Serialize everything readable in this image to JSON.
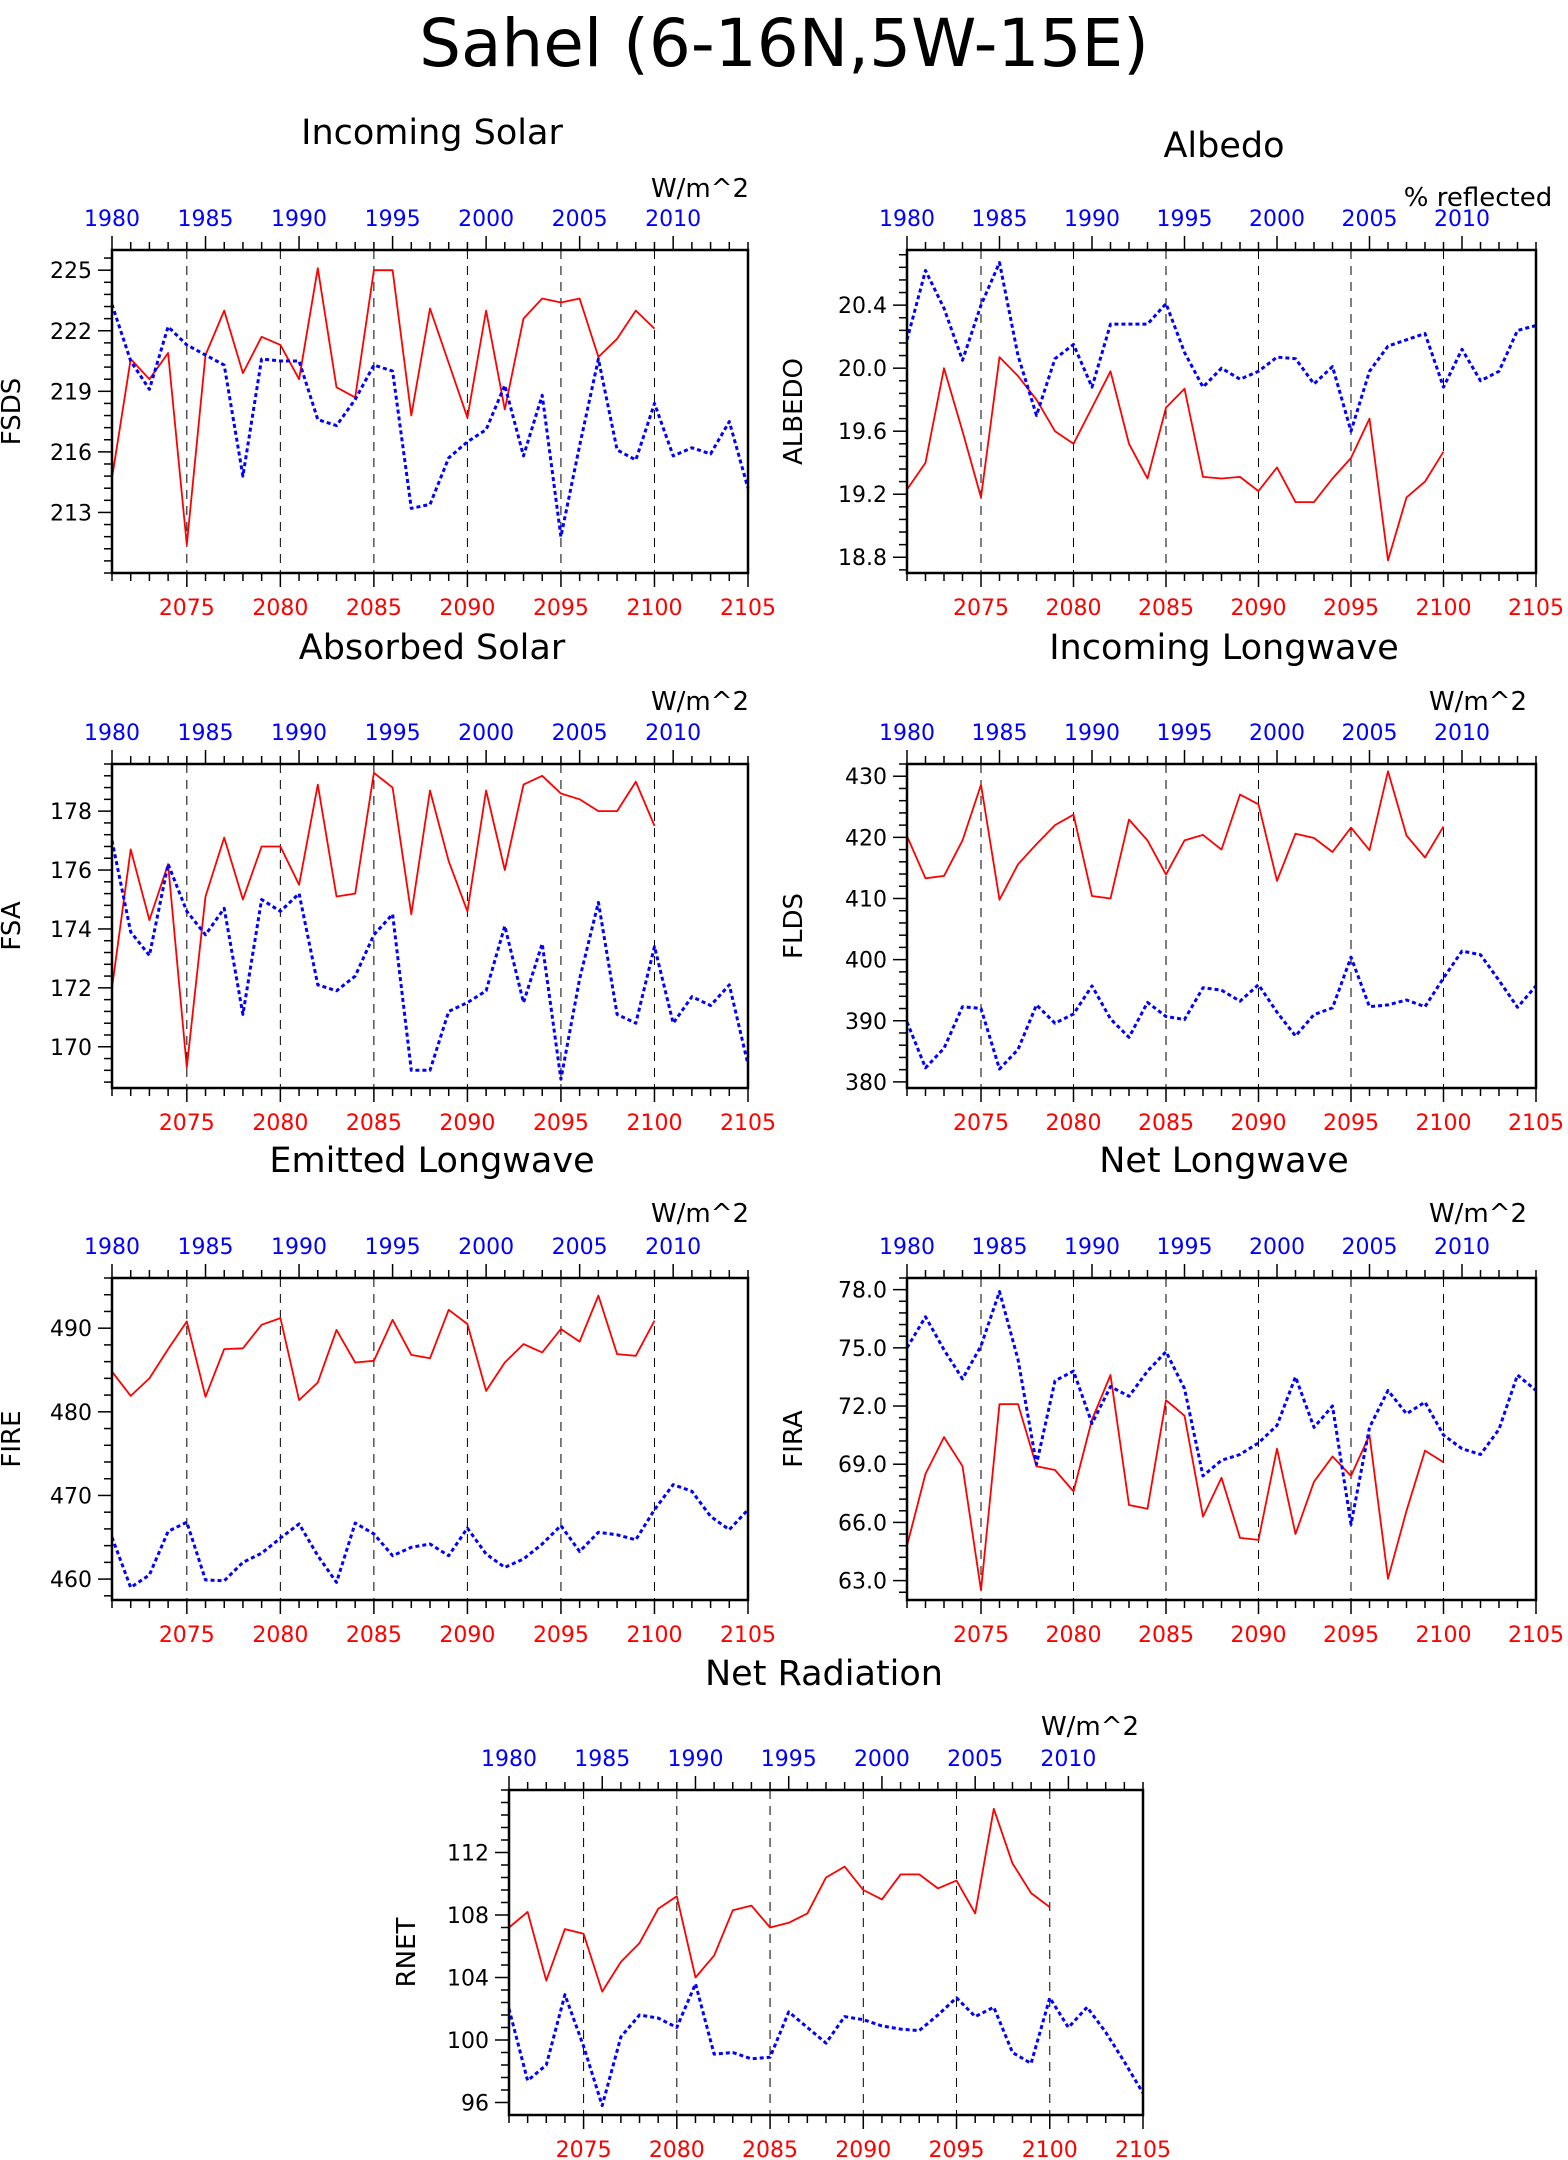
{
  "title": "Sahel (6-16N,5W-15E)",
  "colors": {
    "future": "#ff0000",
    "historical": "#0000ff",
    "axis": "#000000"
  },
  "chart_data": [
    {
      "type": "line",
      "title": "Incoming Solar",
      "units": "W/m^2",
      "ylabel": "FSDS",
      "ylim": [
        210,
        226
      ],
      "yticks": [
        213,
        216,
        219,
        222,
        225
      ],
      "ytick_labels": [
        "213",
        "216",
        "219",
        "222",
        "225"
      ],
      "x_bottom": {
        "lim": [
          2071,
          2105
        ],
        "ticks": [
          2075,
          2080,
          2085,
          2090,
          2095,
          2100,
          2105
        ],
        "labels": [
          "2075",
          "2080",
          "2085",
          "2090",
          "2095",
          "2100",
          "2105"
        ]
      },
      "x_top": {
        "lim": [
          1980,
          2014
        ],
        "ticks": [
          1980,
          1985,
          1990,
          1995,
          2000,
          2005,
          2010
        ],
        "labels": [
          "1980",
          "1985",
          "1990",
          "1995",
          "2000",
          "2005",
          "2010"
        ]
      },
      "series": [
        {
          "role": "future",
          "x_start": 2071,
          "values": [
            214.7,
            220.6,
            219.6,
            220.9,
            211.4,
            220.8,
            223.0,
            219.9,
            221.7,
            221.3,
            219.6,
            225.1,
            219.2,
            218.7,
            225.0,
            225.0,
            217.8,
            223.1,
            220.4,
            217.7,
            223.0,
            218.1,
            222.6,
            223.6,
            223.4,
            223.6,
            220.7,
            221.6,
            223.0,
            222.1
          ]
        },
        {
          "role": "historical",
          "x_start": 1980,
          "values": [
            223.3,
            220.5,
            219.1,
            222.2,
            221.3,
            220.8,
            220.3,
            214.8,
            220.6,
            220.5,
            220.5,
            217.6,
            217.3,
            218.6,
            220.3,
            220.0,
            213.2,
            213.4,
            215.7,
            216.5,
            217.1,
            219.3,
            215.8,
            218.8,
            211.8,
            216.3,
            220.6,
            216.1,
            215.6,
            218.4,
            215.8,
            216.2,
            215.9,
            217.5,
            214.2
          ]
        }
      ]
    },
    {
      "type": "line",
      "title": "Albedo",
      "units": "% reflected",
      "ylabel": "ALBEDO",
      "ylim": [
        18.7,
        20.75
      ],
      "yticks": [
        18.8,
        19.2,
        19.6,
        20.0,
        20.4
      ],
      "ytick_labels": [
        "18.8",
        "19.2",
        "19.6",
        "20.0",
        "20.4"
      ],
      "x_bottom": {
        "lim": [
          2071,
          2105
        ],
        "ticks": [
          2075,
          2080,
          2085,
          2090,
          2095,
          2100,
          2105
        ],
        "labels": [
          "2075",
          "2080",
          "2085",
          "2090",
          "2095",
          "2100",
          "2105"
        ]
      },
      "x_top": {
        "lim": [
          1980,
          2014
        ],
        "ticks": [
          1980,
          1985,
          1990,
          1995,
          2000,
          2005,
          2010
        ],
        "labels": [
          "1980",
          "1985",
          "1990",
          "1995",
          "2000",
          "2005",
          "2010"
        ]
      },
      "series": [
        {
          "role": "future",
          "x_start": 2071,
          "values": [
            19.23,
            19.4,
            20.0,
            19.6,
            19.18,
            20.07,
            19.95,
            19.8,
            19.6,
            19.52,
            19.75,
            19.98,
            19.52,
            19.3,
            19.75,
            19.87,
            19.31,
            19.3,
            19.31,
            19.22,
            19.37,
            19.15,
            19.15,
            19.3,
            19.43,
            19.68,
            18.78,
            19.18,
            19.28,
            19.47
          ]
        },
        {
          "role": "historical",
          "x_start": 1980,
          "values": [
            20.18,
            20.62,
            20.38,
            20.05,
            20.4,
            20.67,
            20.08,
            19.7,
            20.06,
            20.15,
            19.88,
            20.28,
            20.28,
            20.28,
            20.41,
            20.1,
            19.88,
            20.0,
            19.93,
            19.98,
            20.07,
            20.06,
            19.9,
            20.01,
            19.6,
            19.98,
            20.14,
            20.18,
            20.22,
            19.88,
            20.12,
            19.92,
            19.98,
            20.24,
            20.27
          ]
        }
      ]
    },
    {
      "type": "line",
      "title": "Absorbed Solar",
      "units": "W/m^2",
      "ylabel": "FSA",
      "ylim": [
        168.6,
        179.6
      ],
      "yticks": [
        170,
        172,
        174,
        176,
        178
      ],
      "ytick_labels": [
        "170",
        "172",
        "174",
        "176",
        "178"
      ],
      "x_bottom": {
        "lim": [
          2071,
          2105
        ],
        "ticks": [
          2075,
          2080,
          2085,
          2090,
          2095,
          2100,
          2105
        ],
        "labels": [
          "2075",
          "2080",
          "2085",
          "2090",
          "2095",
          "2100",
          "2105"
        ]
      },
      "x_top": {
        "lim": [
          1980,
          2014
        ],
        "ticks": [
          1980,
          1985,
          1990,
          1995,
          2000,
          2005,
          2010
        ],
        "labels": [
          "1980",
          "1985",
          "1990",
          "1995",
          "2000",
          "2005",
          "2010"
        ]
      },
      "series": [
        {
          "role": "future",
          "x_start": 2071,
          "values": [
            172.0,
            176.7,
            174.3,
            176.2,
            169.3,
            175.1,
            177.1,
            175.0,
            176.8,
            176.8,
            175.5,
            178.9,
            175.1,
            175.2,
            179.3,
            178.8,
            174.5,
            178.7,
            176.3,
            174.6,
            178.7,
            176.0,
            178.9,
            179.2,
            178.6,
            178.4,
            178.0,
            178.0,
            179.0,
            177.5
          ]
        },
        {
          "role": "historical",
          "x_start": 1980,
          "values": [
            177.0,
            173.9,
            173.1,
            176.2,
            174.6,
            173.8,
            174.7,
            171.1,
            175.0,
            174.6,
            175.2,
            172.1,
            171.9,
            172.4,
            173.8,
            174.5,
            169.2,
            169.2,
            171.2,
            171.5,
            171.9,
            174.1,
            171.5,
            173.5,
            168.9,
            172.3,
            174.9,
            171.1,
            170.8,
            173.4,
            170.8,
            171.7,
            171.4,
            172.1,
            169.4
          ]
        }
      ]
    },
    {
      "type": "line",
      "title": "Incoming Longwave",
      "units": "W/m^2",
      "ylabel": "FLDS",
      "ylim": [
        379,
        432
      ],
      "yticks": [
        380,
        390,
        400,
        410,
        420,
        430
      ],
      "ytick_labels": [
        "380",
        "390",
        "400",
        "410",
        "420",
        "430"
      ],
      "x_bottom": {
        "lim": [
          2071,
          2105
        ],
        "ticks": [
          2075,
          2080,
          2085,
          2090,
          2095,
          2100,
          2105
        ],
        "labels": [
          "2075",
          "2080",
          "2085",
          "2090",
          "2095",
          "2100",
          "2105"
        ]
      },
      "x_top": {
        "lim": [
          1980,
          2014
        ],
        "ticks": [
          1980,
          1985,
          1990,
          1995,
          2000,
          2005,
          2010
        ],
        "labels": [
          "1980",
          "1985",
          "1990",
          "1995",
          "2000",
          "2005",
          "2010"
        ]
      },
      "series": [
        {
          "role": "future",
          "x_start": 2071,
          "values": [
            420.2,
            413.3,
            413.7,
            419.5,
            428.6,
            409.8,
            415.6,
            418.9,
            422.0,
            423.7,
            410.4,
            410.0,
            422.9,
            419.5,
            413.9,
            419.5,
            420.4,
            418.0,
            427.0,
            425.4,
            412.9,
            420.6,
            419.9,
            417.6,
            421.6,
            417.9,
            430.8,
            420.3,
            416.7,
            421.8
          ]
        },
        {
          "role": "historical",
          "x_start": 1980,
          "values": [
            389.8,
            382.3,
            385.5,
            392.3,
            392.0,
            382.1,
            385.3,
            392.6,
            389.6,
            391.1,
            395.7,
            390.3,
            387.3,
            393.0,
            390.7,
            390.2,
            395.4,
            395.0,
            393.2,
            395.9,
            391.4,
            387.5,
            391.0,
            392.1,
            400.4,
            392.3,
            392.6,
            393.4,
            392.3,
            397.0,
            401.4,
            400.8,
            396.6,
            392.2,
            395.7
          ]
        }
      ]
    },
    {
      "type": "line",
      "title": "Emitted Longwave",
      "units": "W/m^2",
      "ylabel": "FIRE",
      "ylim": [
        457.5,
        496
      ],
      "yticks": [
        460,
        470,
        480,
        490
      ],
      "ytick_labels": [
        "460",
        "470",
        "480",
        "490"
      ],
      "x_bottom": {
        "lim": [
          2071,
          2105
        ],
        "ticks": [
          2075,
          2080,
          2085,
          2090,
          2095,
          2100,
          2105
        ],
        "labels": [
          "2075",
          "2080",
          "2085",
          "2090",
          "2095",
          "2100",
          "2105"
        ]
      },
      "x_top": {
        "lim": [
          1980,
          2014
        ],
        "ticks": [
          1980,
          1985,
          1990,
          1995,
          2000,
          2005,
          2010
        ],
        "labels": [
          "1980",
          "1985",
          "1990",
          "1995",
          "2000",
          "2005",
          "2010"
        ]
      },
      "series": [
        {
          "role": "future",
          "x_start": 2071,
          "values": [
            484.8,
            481.9,
            484.0,
            487.5,
            490.8,
            481.8,
            487.5,
            487.6,
            490.4,
            491.2,
            481.4,
            483.5,
            489.8,
            485.9,
            486.1,
            491.0,
            486.8,
            486.4,
            492.2,
            490.5,
            482.5,
            485.9,
            488.1,
            487.1,
            489.9,
            488.4,
            493.9,
            486.9,
            486.7,
            490.9
          ]
        },
        {
          "role": "historical",
          "x_start": 1980,
          "values": [
            465.0,
            459.0,
            460.5,
            465.7,
            466.8,
            459.9,
            459.8,
            462.0,
            463.1,
            464.9,
            466.6,
            462.8,
            459.6,
            466.7,
            465.4,
            462.8,
            463.8,
            464.2,
            462.8,
            466.1,
            463.0,
            461.4,
            462.4,
            464.2,
            466.4,
            463.3,
            465.6,
            465.3,
            464.7,
            468.3,
            471.3,
            470.5,
            467.5,
            465.9,
            468.3
          ]
        }
      ]
    },
    {
      "type": "line",
      "title": "Net Longwave",
      "units": "W/m^2",
      "ylabel": "FIRA",
      "ylim": [
        62.0,
        78.6
      ],
      "yticks": [
        63.0,
        66.0,
        69.0,
        72.0,
        75.0,
        78.0
      ],
      "ytick_labels": [
        "63.0",
        "66.0",
        "69.0",
        "72.0",
        "75.0",
        "78.0"
      ],
      "x_bottom": {
        "lim": [
          2071,
          2105
        ],
        "ticks": [
          2075,
          2080,
          2085,
          2090,
          2095,
          2100,
          2105
        ],
        "labels": [
          "2075",
          "2080",
          "2085",
          "2090",
          "2095",
          "2100",
          "2105"
        ]
      },
      "x_top": {
        "lim": [
          1980,
          2014
        ],
        "ticks": [
          1980,
          1985,
          1990,
          1995,
          2000,
          2005,
          2010
        ],
        "labels": [
          "1980",
          "1985",
          "1990",
          "1995",
          "2000",
          "2005",
          "2010"
        ]
      },
      "series": [
        {
          "role": "future",
          "x_start": 2071,
          "values": [
            64.8,
            68.5,
            70.4,
            68.9,
            62.5,
            72.1,
            72.1,
            68.9,
            68.7,
            67.6,
            71.3,
            73.6,
            66.9,
            66.7,
            72.3,
            71.5,
            66.3,
            68.3,
            65.2,
            65.1,
            69.8,
            65.4,
            68.1,
            69.4,
            68.4,
            70.5,
            63.1,
            66.6,
            69.7,
            69.1
          ]
        },
        {
          "role": "historical",
          "x_start": 1980,
          "values": [
            75.0,
            76.6,
            74.9,
            73.4,
            75.1,
            77.9,
            74.4,
            69.0,
            73.3,
            73.8,
            71.1,
            73.0,
            72.5,
            73.8,
            74.8,
            72.9,
            68.4,
            69.2,
            69.5,
            70.1,
            71.0,
            73.5,
            70.9,
            72.0,
            65.9,
            70.9,
            72.8,
            71.6,
            72.2,
            70.5,
            69.8,
            69.5,
            70.8,
            73.6,
            72.8
          ]
        }
      ]
    },
    {
      "type": "line",
      "title": "Net Radiation",
      "units": "W/m^2",
      "ylabel": "RNET",
      "ylim": [
        95.2,
        116.0
      ],
      "yticks": [
        96,
        100,
        104,
        108,
        112
      ],
      "ytick_labels": [
        "96",
        "100",
        "104",
        "108",
        "112"
      ],
      "x_bottom": {
        "lim": [
          2071,
          2105
        ],
        "ticks": [
          2075,
          2080,
          2085,
          2090,
          2095,
          2100,
          2105
        ],
        "labels": [
          "2075",
          "2080",
          "2085",
          "2090",
          "2095",
          "2100",
          "2105"
        ]
      },
      "x_top": {
        "lim": [
          1980,
          2014
        ],
        "ticks": [
          1980,
          1985,
          1990,
          1995,
          2000,
          2005,
          2010
        ],
        "labels": [
          "1980",
          "1985",
          "1990",
          "1995",
          "2000",
          "2005",
          "2010"
        ]
      },
      "series": [
        {
          "role": "future",
          "x_start": 2071,
          "values": [
            107.2,
            108.2,
            103.8,
            107.1,
            106.8,
            103.1,
            105.0,
            106.2,
            108.4,
            109.2,
            104.0,
            105.4,
            108.3,
            108.6,
            107.2,
            107.5,
            108.1,
            110.4,
            111.1,
            109.6,
            109.0,
            110.6,
            110.6,
            109.7,
            110.2,
            108.1,
            114.8,
            111.3,
            109.4,
            108.5
          ]
        },
        {
          "role": "historical",
          "x_start": 1980,
          "values": [
            102.0,
            97.4,
            98.4,
            102.9,
            99.6,
            95.8,
            100.2,
            101.6,
            101.4,
            100.8,
            103.6,
            99.1,
            99.2,
            98.8,
            98.9,
            101.8,
            100.8,
            99.8,
            101.5,
            101.3,
            100.9,
            100.7,
            100.6,
            101.6,
            102.7,
            101.5,
            102.1,
            99.2,
            98.5,
            102.7,
            100.8,
            102.1,
            100.5,
            98.6,
            96.6
          ]
        }
      ]
    }
  ]
}
